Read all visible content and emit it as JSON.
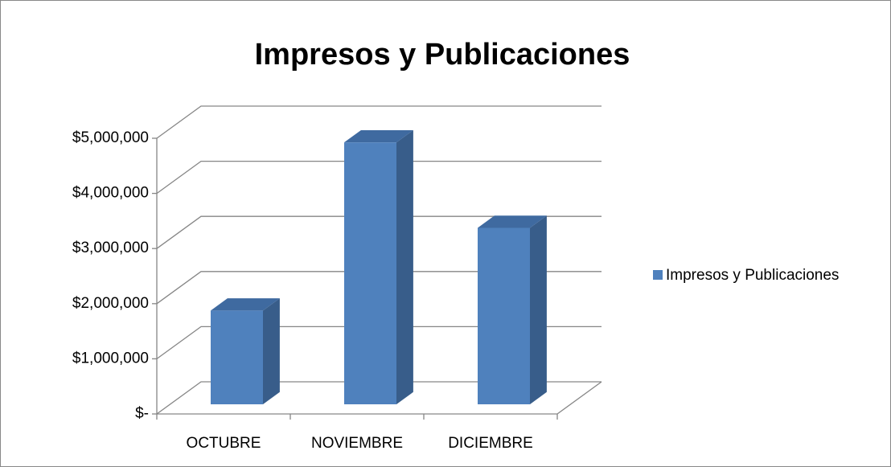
{
  "chart_data": {
    "type": "bar3d",
    "title": "Impresos y Publicaciones",
    "categories": [
      "OCTUBRE",
      "NOVIEMBRE",
      "DICIEMBRE"
    ],
    "series": [
      {
        "name": "Impresos y Publicaciones",
        "color": "#4f81bd",
        "values": [
          1700000,
          4750000,
          3200000
        ]
      }
    ],
    "ylim": [
      0,
      5000000
    ],
    "yticks": [
      {
        "value": 0,
        "label": "$-"
      },
      {
        "value": 1000000,
        "label": "$1,000,000"
      },
      {
        "value": 2000000,
        "label": "$2,000,000"
      },
      {
        "value": 3000000,
        "label": "$3,000,000"
      },
      {
        "value": 4000000,
        "label": "$4,000,000"
      },
      {
        "value": 5000000,
        "label": "$5,000,000"
      }
    ],
    "grid": true,
    "legend": "right"
  }
}
